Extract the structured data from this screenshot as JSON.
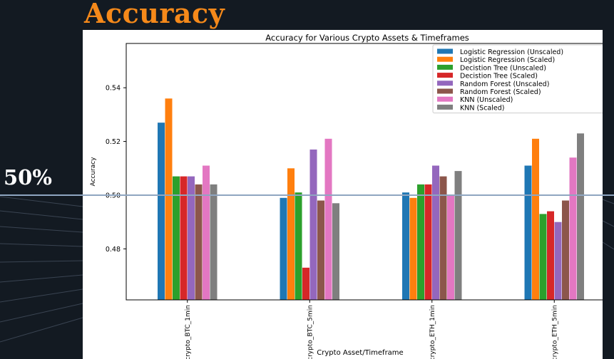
{
  "slide": {
    "title": "Accuracy",
    "reference_label": "50%",
    "accent_color": "#f5891a",
    "reference_line_color": "#8fa6c1"
  },
  "chart_data": {
    "type": "bar",
    "title": "Accuracy for Various Crypto Assets & Timeframes",
    "xlabel": "Crypto Asset/Timeframe",
    "ylabel": "Accuracy",
    "ylim": [
      0.461,
      0.5565
    ],
    "yticks": [
      0.48,
      0.5,
      0.52,
      0.54
    ],
    "ytick_labels": [
      "0.48",
      "0.50",
      "0.52",
      "0.54"
    ],
    "grid": false,
    "legend_position": "top-right",
    "categories": [
      "crypto_BTC_1min",
      "crypto_BTC_5min",
      "crypto_ETH_1min",
      "crypto_ETH_5min"
    ],
    "series": [
      {
        "name": "Logistic Regression (Unscaled)",
        "color": "#1f77b4",
        "values": [
          0.527,
          0.499,
          0.501,
          0.511
        ]
      },
      {
        "name": "Logistic Regression (Scaled)",
        "color": "#ff7f0e",
        "values": [
          0.536,
          0.51,
          0.499,
          0.521
        ]
      },
      {
        "name": "Decistion Tree  (Unscaled)",
        "color": "#2ca02c",
        "values": [
          0.507,
          0.501,
          0.504,
          0.493
        ]
      },
      {
        "name": "Decistion Tree (Scaled)",
        "color": "#d62728",
        "values": [
          0.507,
          0.473,
          0.504,
          0.494
        ]
      },
      {
        "name": "Random Forest  (Unscaled)",
        "color": "#9467bd",
        "values": [
          0.507,
          0.517,
          0.511,
          0.49
        ]
      },
      {
        "name": "Random Forest (Scaled)",
        "color": "#8c564b",
        "values": [
          0.504,
          0.498,
          0.507,
          0.498
        ]
      },
      {
        "name": "KNN  (Unscaled)",
        "color": "#e377c2",
        "values": [
          0.511,
          0.521,
          0.5,
          0.514
        ]
      },
      {
        "name": "KNN (Scaled)",
        "color": "#7f7f7f",
        "values": [
          0.504,
          0.497,
          0.509,
          0.523
        ]
      }
    ]
  }
}
